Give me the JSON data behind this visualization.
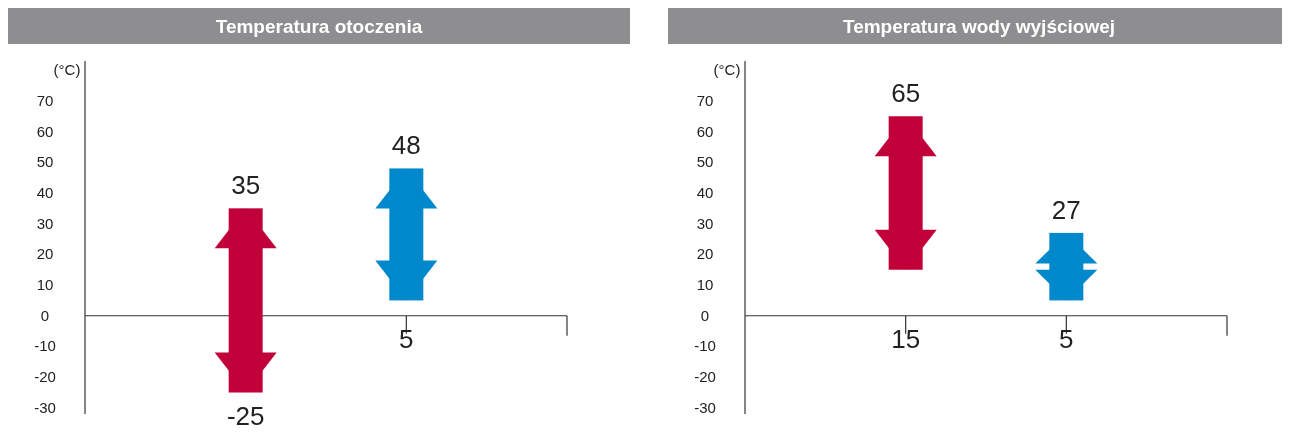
{
  "chart_data": [
    {
      "type": "bar",
      "title": "Temperatura otoczenia",
      "ylabel": "(°C)",
      "categories": [
        null,
        null
      ],
      "base": [
        -25,
        5
      ],
      "values": [
        60,
        43
      ],
      "colors": [
        "#c1003a",
        "#0088cc"
      ],
      "ylim": [
        -32,
        83
      ],
      "yticks": [
        -30,
        -20,
        -10,
        0,
        10,
        20,
        30,
        40,
        50,
        60,
        70
      ],
      "annotations": [
        "35",
        "-25",
        "48",
        "5"
      ]
    },
    {
      "type": "bar",
      "title": "Temperatura wody wyjściowej",
      "ylabel": "(°C)",
      "categories": [
        null,
        null
      ],
      "base": [
        15,
        5
      ],
      "values": [
        50,
        22
      ],
      "colors": [
        "#c1003a",
        "#0088cc"
      ],
      "ylim": [
        -32,
        83
      ],
      "yticks": [
        -30,
        -20,
        -10,
        0,
        10,
        20,
        30,
        40,
        50,
        60,
        70
      ],
      "annotations": [
        "65",
        "15",
        "27",
        "5"
      ]
    }
  ]
}
